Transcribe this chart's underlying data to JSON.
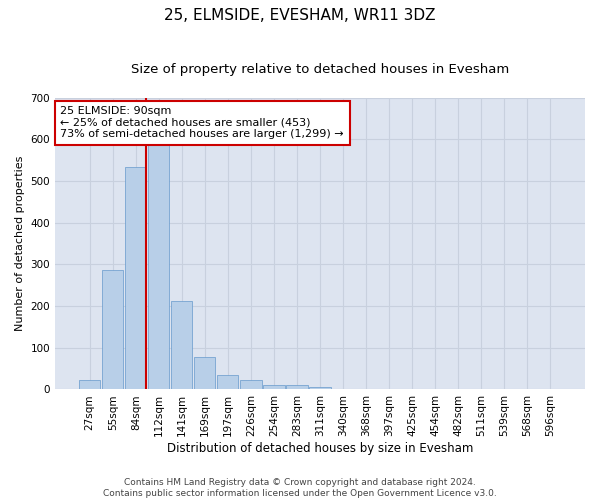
{
  "title": "25, ELMSIDE, EVESHAM, WR11 3DZ",
  "subtitle": "Size of property relative to detached houses in Evesham",
  "xlabel": "Distribution of detached houses by size in Evesham",
  "ylabel": "Number of detached properties",
  "footer_line1": "Contains HM Land Registry data © Crown copyright and database right 2024.",
  "footer_line2": "Contains public sector information licensed under the Open Government Licence v3.0.",
  "categories": [
    "27sqm",
    "55sqm",
    "84sqm",
    "112sqm",
    "141sqm",
    "169sqm",
    "197sqm",
    "226sqm",
    "254sqm",
    "283sqm",
    "311sqm",
    "340sqm",
    "368sqm",
    "397sqm",
    "425sqm",
    "454sqm",
    "482sqm",
    "511sqm",
    "539sqm",
    "568sqm",
    "596sqm"
  ],
  "bar_values": [
    22,
    286,
    533,
    585,
    212,
    79,
    35,
    22,
    10,
    10,
    7,
    0,
    0,
    0,
    0,
    0,
    0,
    0,
    0,
    0,
    0
  ],
  "bar_color": "#b8cfe8",
  "bar_edge_color": "#6699cc",
  "vline_color": "#cc0000",
  "annotation_text": "25 ELMSIDE: 90sqm\n← 25% of detached houses are smaller (453)\n73% of semi-detached houses are larger (1,299) →",
  "annotation_box_color": "#ffffff",
  "annotation_box_edge_color": "#cc0000",
  "ylim": [
    0,
    700
  ],
  "yticks": [
    0,
    100,
    200,
    300,
    400,
    500,
    600,
    700
  ],
  "grid_color": "#c8d0de",
  "bg_color": "#dde4f0",
  "title_fontsize": 11,
  "subtitle_fontsize": 9.5,
  "xlabel_fontsize": 8.5,
  "ylabel_fontsize": 8,
  "tick_fontsize": 7.5,
  "annotation_fontsize": 8,
  "footer_fontsize": 6.5
}
